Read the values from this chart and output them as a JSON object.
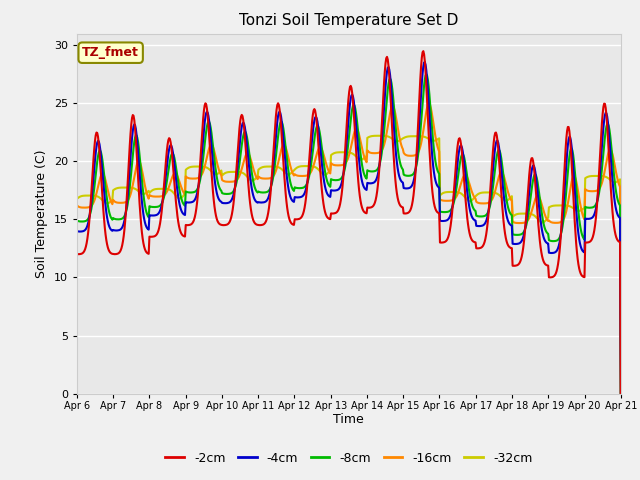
{
  "title": "Tonzi Soil Temperature Set D",
  "xlabel": "Time",
  "ylabel": "Soil Temperature (C)",
  "ylim": [
    0,
    31
  ],
  "yticks": [
    0,
    5,
    10,
    15,
    20,
    25,
    30
  ],
  "background_color": "#e8e8e8",
  "series_colors": [
    "#dd0000",
    "#0000cc",
    "#00bb00",
    "#ff8800",
    "#cccc00"
  ],
  "series_labels": [
    "-2cm",
    "-4cm",
    "-8cm",
    "-16cm",
    "-32cm"
  ],
  "legend_label": "TZ_fmet",
  "legend_bg": "#ffffcc",
  "legend_border": "#888800",
  "legend_text_color": "#aa0000",
  "n_days": 15,
  "points_per_day": 48,
  "xtick_labels": [
    "Apr 6",
    "Apr 7",
    "Apr 8",
    "Apr 9",
    "Apr 10",
    "Apr 11",
    "Apr 12",
    "Apr 13",
    "Apr 14",
    "Apr 15",
    "Apr 16",
    "Apr 17",
    "Apr 18",
    "Apr 19",
    "Apr 20",
    "Apr 21"
  ],
  "day_peaks_2cm": [
    22.5,
    24.0,
    22.0,
    25.0,
    24.0,
    25.0,
    24.5,
    26.5,
    29.0,
    29.5,
    22.0,
    22.5,
    20.3,
    23.0,
    25.0
  ],
  "day_troughs_2cm": [
    12.0,
    12.0,
    13.5,
    14.5,
    14.5,
    14.5,
    15.0,
    15.5,
    16.0,
    15.5,
    13.0,
    12.5,
    11.0,
    10.0,
    13.0
  ],
  "depth_factors": [
    1.0,
    0.88,
    0.75,
    0.45,
    0.08
  ],
  "depth_trough_offsets": [
    0.0,
    1.5,
    2.0,
    2.5,
    2.8
  ],
  "phase_delays": [
    0.0,
    0.25,
    0.55,
    1.0,
    1.8
  ]
}
